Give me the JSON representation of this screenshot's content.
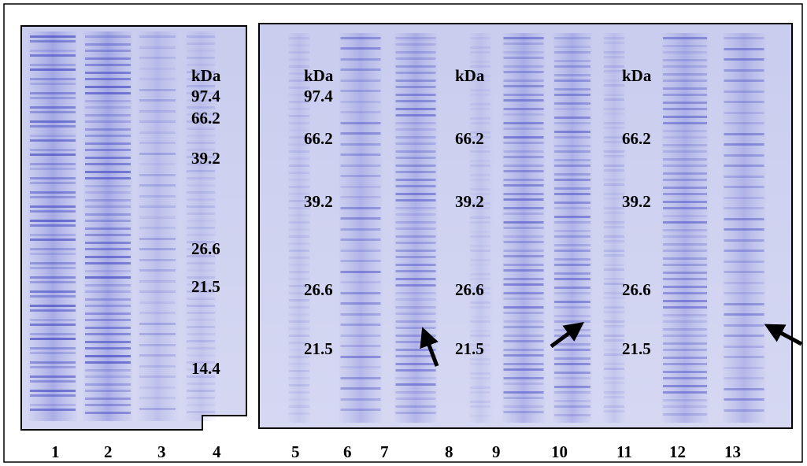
{
  "gel_left": {
    "marker_labels": [
      "kDa",
      "97.4",
      "66.2",
      "39.2",
      "26.6",
      "21.5",
      "14.4"
    ]
  },
  "gel_right": {
    "marker_groups": [
      {
        "labels": [
          "kDa",
          "97.4",
          "66.2",
          "39.2",
          "26.6",
          "21.5"
        ]
      },
      {
        "labels": [
          "kDa",
          "66.2",
          "39.2",
          "26.6",
          "21.5"
        ]
      },
      {
        "labels": [
          "kDa",
          "66.2",
          "39.2",
          "26.6",
          "21.5"
        ]
      }
    ]
  },
  "lanes": [
    "1",
    "2",
    "3",
    "4",
    "5",
    "6",
    "7",
    "8",
    "9",
    "10",
    "11",
    "12",
    "13"
  ]
}
